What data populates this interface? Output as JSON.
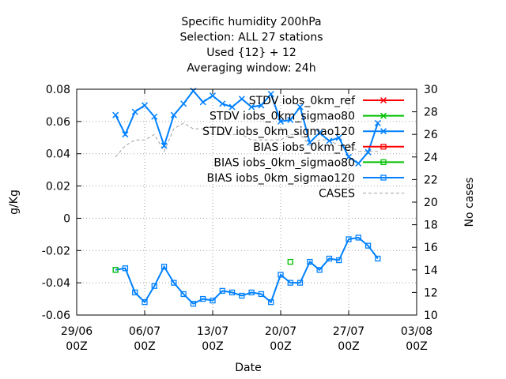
{
  "chart_data": {
    "type": "line",
    "title_lines": [
      "Specific humidity 200hPa",
      "Selection: ALL     27 stations",
      "Used {12} + 12",
      "Averaging window: 24h"
    ],
    "xlabel": "Date",
    "ylabel": "g/Kg",
    "y2label": "No cases",
    "x_ticks": [
      {
        "day": 0,
        "line1": "29/06",
        "line2": "00Z"
      },
      {
        "day": 7,
        "line1": "06/07",
        "line2": "00Z"
      },
      {
        "day": 14,
        "line1": "13/07",
        "line2": "00Z"
      },
      {
        "day": 21,
        "line1": "20/07",
        "line2": "00Z"
      },
      {
        "day": 28,
        "line1": "27/07",
        "line2": "00Z"
      },
      {
        "day": 35,
        "line1": "03/08",
        "line2": "00Z"
      }
    ],
    "xlim_days": [
      0,
      35
    ],
    "ylim": [
      -0.06,
      0.08
    ],
    "y_ticks": [
      "-0.06",
      "-0.04",
      "-0.02",
      "0",
      "0.02",
      "0.04",
      "0.06",
      "0.08"
    ],
    "y2lim": [
      10,
      30
    ],
    "y2_ticks": [
      "10",
      "12",
      "14",
      "16",
      "18",
      "20",
      "22",
      "24",
      "26",
      "28",
      "30"
    ],
    "grid": true,
    "legend_position": "top-right",
    "legend": [
      {
        "name": "STDV iobs_0km_ref",
        "color": "#ff0000",
        "marker": "x"
      },
      {
        "name": "STDV iobs_0km_sigmao80",
        "color": "#00c000",
        "marker": "x"
      },
      {
        "name": "STDV iobs_0km_sigmao120",
        "color": "#0080ff",
        "marker": "x"
      },
      {
        "name": "BIAS iobs_0km_ref",
        "color": "#ff0000",
        "marker": "square"
      },
      {
        "name": "BIAS iobs_0km_sigmao80",
        "color": "#00c000",
        "marker": "square"
      },
      {
        "name": "BIAS iobs_0km_sigmao120",
        "color": "#0080ff",
        "marker": "square"
      },
      {
        "name": "CASES",
        "color": "#a0a0a0",
        "marker": "dash"
      }
    ],
    "x_days": [
      4,
      5,
      6,
      7,
      8,
      9,
      10,
      11,
      12,
      13,
      14,
      15,
      16,
      17,
      18,
      19,
      20,
      21,
      22,
      23,
      24,
      25,
      26,
      27,
      28,
      29,
      30,
      31
    ],
    "series": [
      {
        "name": "STDV iobs_0km_sigmao120",
        "color": "#0080ff",
        "marker": "x",
        "axis": "y",
        "values": [
          0.064,
          0.052,
          0.066,
          0.07,
          0.063,
          0.045,
          0.064,
          0.071,
          0.079,
          0.072,
          0.076,
          0.071,
          0.069,
          0.074,
          0.069,
          0.07,
          0.077,
          0.06,
          0.061,
          0.069,
          0.047,
          0.053,
          0.048,
          0.05,
          0.038,
          0.034,
          0.041,
          0.059
        ]
      },
      {
        "name": "BIAS iobs_0km_sigmao120",
        "color": "#0080ff",
        "marker": "square",
        "axis": "y",
        "values": [
          -0.032,
          -0.031,
          -0.046,
          -0.052,
          -0.042,
          -0.03,
          -0.04,
          -0.047,
          -0.053,
          -0.05,
          -0.051,
          -0.045,
          -0.046,
          -0.048,
          -0.046,
          -0.047,
          -0.052,
          -0.035,
          -0.04,
          -0.04,
          -0.027,
          -0.032,
          -0.025,
          -0.026,
          -0.013,
          -0.012,
          -0.017,
          -0.025
        ]
      },
      {
        "name": "CASES",
        "color": "#a0a0a0",
        "marker": "dash",
        "axis": "y2",
        "values": [
          24.0,
          25.0,
          25.5,
          25.5,
          26.0,
          24.5,
          26.5,
          27.0,
          26.5,
          26.5,
          26.0,
          26.0,
          26.0,
          26.0,
          25.5,
          25.5,
          25.5,
          25.5,
          26.0,
          26.0,
          25.0,
          25.5,
          25.5,
          25.0,
          25.0,
          24.5,
          24.5,
          24.5
        ]
      }
    ],
    "highlight_points": [
      {
        "series": "BIAS iobs_0km_sigmao80",
        "color": "#00c000",
        "marker": "square",
        "x_day": 4,
        "y": -0.032
      },
      {
        "series": "BIAS iobs_0km_sigmao80",
        "color": "#00c000",
        "marker": "square",
        "x_day": 22,
        "y": -0.027
      }
    ]
  }
}
